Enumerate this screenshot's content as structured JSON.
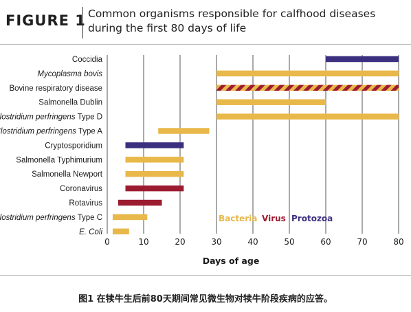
{
  "figure": {
    "label": "FIGURE 1",
    "title_line1": "Common organisms responsible for calfhood diseases",
    "title_line2": "during the first 80 days of life"
  },
  "caption": "图1 在犊牛生后前80天期间常见微生物对犊牛阶段疾病的应答。",
  "colors": {
    "bacteria": "#e8b84a",
    "virus": "#9b1b30",
    "protozoa": "#3b2f80",
    "grid": "#555555"
  },
  "chart_data": {
    "type": "bar",
    "orientation": "horizontal-range",
    "xlabel": "Days of age",
    "xlim": [
      0,
      80
    ],
    "xticks": [
      0,
      10,
      20,
      30,
      40,
      50,
      60,
      70,
      80
    ],
    "grid": "vertical",
    "legend": {
      "placement": "bottom-right",
      "items": [
        {
          "label": "Bacteria",
          "kind": "bacteria"
        },
        {
          "label": "Virus",
          "kind": "virus"
        },
        {
          "label": "Protozoa",
          "kind": "protozoa"
        }
      ]
    },
    "bars": [
      {
        "italic": "",
        "plain": "Coccidia",
        "start": 60,
        "end": 80,
        "kind": "protozoa"
      },
      {
        "italic": "Mycoplasma bovis",
        "plain": "",
        "start": 30,
        "end": 80,
        "kind": "bacteria"
      },
      {
        "italic": "",
        "plain": "Bovine respiratory disease",
        "start": 30,
        "end": 80,
        "kind": "mixed"
      },
      {
        "italic": "",
        "plain": "Salmonella Dublin",
        "start": 30,
        "end": 60,
        "kind": "bacteria"
      },
      {
        "italic": "Clostridium perfringens",
        "plain": " Type D",
        "start": 30,
        "end": 80,
        "kind": "bacteria"
      },
      {
        "italic": "Clostridium perfringens",
        "plain": " Type A",
        "start": 14,
        "end": 28,
        "kind": "bacteria"
      },
      {
        "italic": "",
        "plain": "Cryptosporidium",
        "start": 5,
        "end": 21,
        "kind": "protozoa"
      },
      {
        "italic": "",
        "plain": "Salmonella Typhimurium",
        "start": 5,
        "end": 21,
        "kind": "bacteria"
      },
      {
        "italic": "",
        "plain": "Salmonella Newport",
        "start": 5,
        "end": 21,
        "kind": "bacteria"
      },
      {
        "italic": "",
        "plain": "Coronavirus",
        "start": 5,
        "end": 21,
        "kind": "virus"
      },
      {
        "italic": "",
        "plain": "Rotavirus",
        "start": 3,
        "end": 15,
        "kind": "virus"
      },
      {
        "italic": "Clostridium perfringens",
        "plain": " Type C",
        "start": 1.5,
        "end": 11,
        "kind": "bacteria"
      },
      {
        "italic": "E. Coli",
        "plain": "",
        "start": 1.5,
        "end": 6,
        "kind": "bacteria"
      }
    ]
  }
}
